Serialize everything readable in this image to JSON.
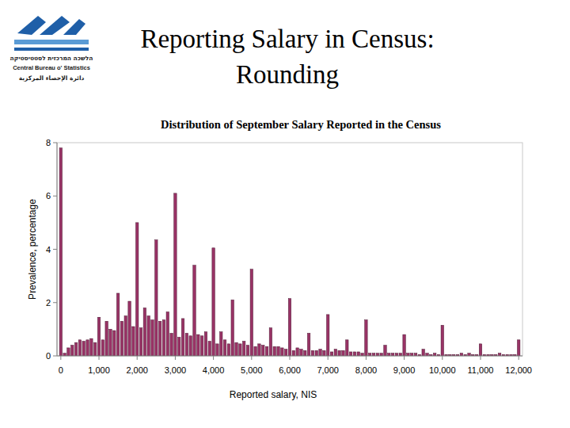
{
  "slide": {
    "title_lines": [
      "Reporting Salary in Census:",
      "Rounding"
    ],
    "logo": {
      "hebrew": "הלשכה המרכזית לסטטיסטיקה",
      "english": "Central Bureau o' Statistics",
      "arabic": "دائرة الإحصاء المركزية"
    }
  },
  "chart_data": {
    "type": "bar",
    "title": "Distribution of September Salary Reported in the Census",
    "x_label": "Reported salary, NIS",
    "y_label": "Prevalence, percentage",
    "x": [
      0,
      100,
      200,
      300,
      400,
      500,
      600,
      700,
      800,
      900,
      1000,
      1100,
      1200,
      1300,
      1400,
      1500,
      1600,
      1700,
      1800,
      1900,
      2000,
      2100,
      2200,
      2300,
      2400,
      2500,
      2600,
      2700,
      2800,
      2900,
      3000,
      3100,
      3200,
      3300,
      3400,
      3500,
      3600,
      3700,
      3800,
      3900,
      4000,
      4100,
      4200,
      4300,
      4400,
      4500,
      4600,
      4700,
      4800,
      4900,
      5000,
      5100,
      5200,
      5300,
      5400,
      5500,
      5600,
      5700,
      5800,
      5900,
      6000,
      6100,
      6200,
      6300,
      6400,
      6500,
      6600,
      6700,
      6800,
      6900,
      7000,
      7100,
      7200,
      7300,
      7400,
      7500,
      7600,
      7700,
      7800,
      7900,
      8000,
      8100,
      8200,
      8300,
      8400,
      8500,
      8600,
      8700,
      8800,
      8900,
      9000,
      9100,
      9200,
      9300,
      9400,
      9500,
      9600,
      9700,
      9800,
      9900,
      10000,
      10100,
      10200,
      10300,
      10400,
      10500,
      10600,
      10700,
      10800,
      10900,
      11000,
      11100,
      11200,
      11300,
      11400,
      11500,
      11600,
      11700,
      11800,
      11900,
      12000
    ],
    "values": [
      7.8,
      0.1,
      0.3,
      0.4,
      0.5,
      0.6,
      0.55,
      0.6,
      0.65,
      0.5,
      1.45,
      0.6,
      1.3,
      1,
      0.95,
      2.35,
      1.3,
      1.5,
      2.05,
      1.1,
      5,
      1.05,
      1.8,
      1.5,
      1.35,
      4.35,
      1.3,
      1.35,
      1.65,
      0.85,
      6.1,
      0.7,
      1.4,
      0.85,
      0.75,
      3.4,
      0.8,
      0.75,
      0.9,
      0.55,
      4.05,
      0.45,
      0.9,
      0.6,
      0.45,
      2.1,
      0.5,
      0.45,
      0.55,
      0.4,
      3.25,
      0.35,
      0.45,
      0.4,
      0.35,
      1.05,
      0.35,
      0.35,
      0.3,
      0.25,
      2.15,
      0.2,
      0.3,
      0.25,
      0.2,
      0.85,
      0.2,
      0.2,
      0.25,
      0.2,
      1.55,
      0.15,
      0.25,
      0.2,
      0.2,
      0.6,
      0.15,
      0.15,
      0.15,
      0.1,
      1.35,
      0.1,
      0.1,
      0.1,
      0.1,
      0.4,
      0.1,
      0.1,
      0.1,
      0.1,
      0.8,
      0.1,
      0.1,
      0.1,
      0.05,
      0.25,
      0.1,
      0.05,
      0.1,
      0.05,
      1.15,
      0.05,
      0.05,
      0.05,
      0.05,
      0.1,
      0.05,
      0.1,
      0.05,
      0.05,
      0.45,
      0.05,
      0.05,
      0.05,
      0.05,
      0.1,
      0.05,
      0.05,
      0.05,
      0.05,
      0.6
    ],
    "color": "#993366",
    "xlim": [
      -100,
      12100
    ],
    "xticks": [
      0,
      {
        "value": 1000,
        "label": "1,000"
      },
      {
        "value": 2000,
        "label": "2,000"
      },
      {
        "value": 3000,
        "label": "3,000"
      },
      {
        "value": 4000,
        "label": "4,000"
      },
      {
        "value": 5000,
        "label": "5,000"
      },
      {
        "value": 6000,
        "label": "6,000"
      },
      {
        "value": 7000,
        "label": "7,000"
      },
      {
        "value": 8000,
        "label": "8,000"
      },
      {
        "value": 9000,
        "label": "9,000"
      },
      {
        "value": 10000,
        "label": "10,000"
      },
      {
        "value": 11000,
        "label": "11,000"
      },
      {
        "value": 12000,
        "label": "12,000"
      }
    ],
    "ylim": [
      0,
      8
    ],
    "yticks": [
      0,
      2,
      4,
      6,
      8
    ],
    "grid": false
  }
}
